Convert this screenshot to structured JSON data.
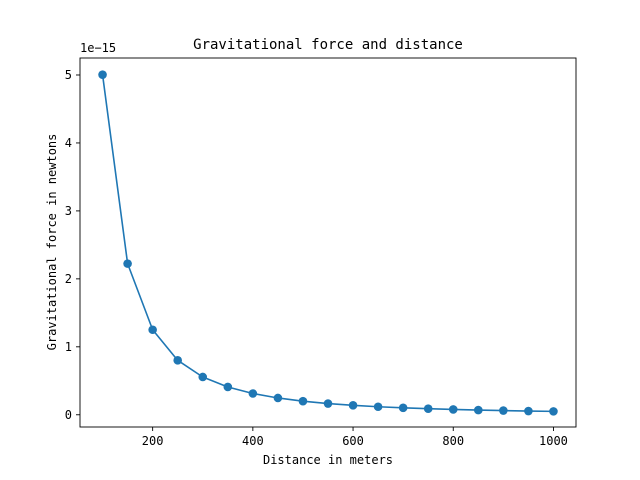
{
  "chart_data": {
    "type": "line",
    "title": "Gravitational force and distance",
    "xlabel": "Distance in meters",
    "ylabel": "Gravitational force in newtons",
    "y_offset_label": "1e−15",
    "y_scale_factor": 1e-15,
    "xlim": [
      55,
      1045
    ],
    "ylim": [
      -0.18,
      5.25
    ],
    "x_ticks": [
      200,
      400,
      600,
      800,
      1000
    ],
    "y_ticks": [
      0,
      1,
      2,
      3,
      4,
      5
    ],
    "grid": false,
    "series": [
      {
        "color": "#1f77b4",
        "marker": "circle",
        "x": [
          100,
          150,
          200,
          250,
          300,
          350,
          400,
          450,
          500,
          550,
          600,
          650,
          700,
          750,
          800,
          850,
          900,
          950,
          1000
        ],
        "y": [
          5.005,
          2.224,
          1.251,
          0.801,
          0.556,
          0.409,
          0.313,
          0.247,
          0.2,
          0.165,
          0.139,
          0.118,
          0.102,
          0.089,
          0.078,
          0.069,
          0.062,
          0.055,
          0.05
        ]
      }
    ]
  }
}
